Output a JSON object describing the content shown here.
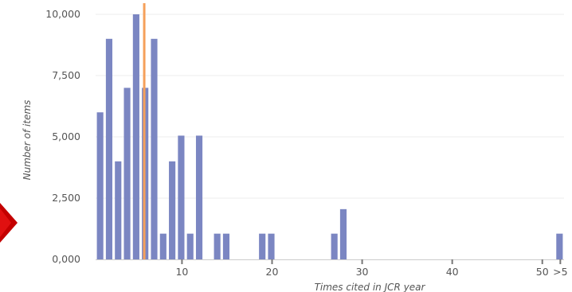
{
  "chart_data": {
    "type": "bar",
    "title": "",
    "xlabel": "Times cited in JCR year",
    "ylabel": "Number of items",
    "xlim": [
      0,
      52
    ],
    "ylim": [
      0,
      10000
    ],
    "y_ticks": [
      "0,000",
      "2,500",
      "5,000",
      "7,500",
      "10,000"
    ],
    "x_ticks": [
      {
        "value": 10,
        "label": "10"
      },
      {
        "value": 20,
        "label": "20"
      },
      {
        "value": 30,
        "label": "30"
      },
      {
        "value": 40,
        "label": "40"
      },
      {
        "value": 50,
        "label": "50"
      },
      {
        "value": 52,
        "label": ">5"
      }
    ],
    "grid": "horizontal",
    "bar_color": "#7b86c2",
    "marker_color": "#f5a05a",
    "marker_x": 5.9,
    "x": [
      1,
      2,
      3,
      4,
      5,
      6,
      7,
      8,
      9,
      10,
      11,
      12,
      14,
      15,
      19,
      20,
      27,
      28,
      52
    ],
    "values": [
      6000,
      9000,
      4000,
      7000,
      10000,
      7000,
      9000,
      1050,
      4000,
      5050,
      1050,
      5050,
      1050,
      1050,
      1050,
      1050,
      1050,
      2050,
      1050
    ]
  }
}
